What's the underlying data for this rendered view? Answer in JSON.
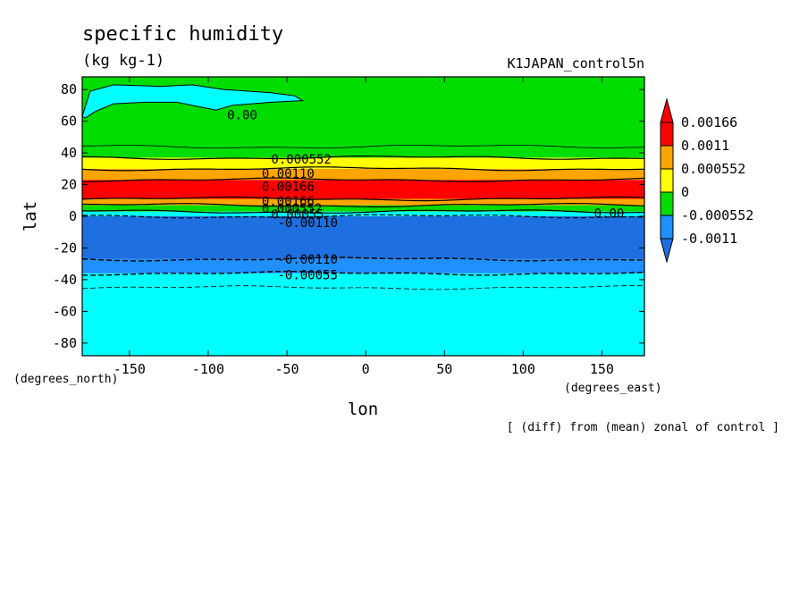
{
  "chart_data": {
    "type": "heatmap",
    "title": "specific humidity",
    "units": "(kg kg-1)",
    "experiment": "K1JAPAN_control5n",
    "xlabel": "lon",
    "ylabel": "lat",
    "x_unit_label": "(degrees_east)",
    "y_unit_label": "(degrees_north)",
    "note": "[ (diff) from (mean) zonal of control ]",
    "xlim": [
      -180,
      177
    ],
    "ylim": [
      -88,
      88
    ],
    "x_ticks": [
      -150,
      -100,
      -50,
      0,
      50,
      100,
      150
    ],
    "x_tick_labels": [
      "-150",
      "-100",
      "-50",
      "0",
      "50",
      "100",
      "150"
    ],
    "y_ticks": [
      -80,
      -60,
      -40,
      -20,
      0,
      20,
      40,
      60,
      80
    ],
    "y_tick_labels": [
      "-80",
      "-60",
      "-40",
      "-20",
      "0",
      "20",
      "40",
      "60",
      "80"
    ],
    "colorbar": {
      "levels": [
        -0.0011,
        -0.000552,
        0,
        0.000552,
        0.0011,
        0.00166
      ],
      "labels": [
        "-0.0011",
        "-0.000552",
        "0",
        "0.000552",
        "0.0011",
        "0.00166"
      ],
      "colors": [
        "#1e90ff",
        "#00ffff",
        "#00dd00",
        "#ffff00",
        "#ffa500",
        "#ff0000"
      ],
      "below_color": "#1e6fe0",
      "above_color": "#ff0000"
    },
    "bands": [
      {
        "y0": -88,
        "y1": -36,
        "color": "#00ffff"
      },
      {
        "y0": -36,
        "y1": -27,
        "color": "#1e90ff"
      },
      {
        "y0": -27,
        "y1": 0,
        "color": "#1e6fe0"
      },
      {
        "y0": 0,
        "y1": 3,
        "color": "#00ffff"
      },
      {
        "y0": 3,
        "y1": 7,
        "color": "#00dd00"
      },
      {
        "y0": 7,
        "y1": 11,
        "color": "#ffa500"
      },
      {
        "y0": 11,
        "y1": 23,
        "color": "#ff0000"
      },
      {
        "y0": 23,
        "y1": 30,
        "color": "#ffa500"
      },
      {
        "y0": 30,
        "y1": 37,
        "color": "#ffff00"
      },
      {
        "y0": 37,
        "y1": 88,
        "color": "#00dd00"
      }
    ],
    "cyan_patch": {
      "color": "#00ffff",
      "points": [
        [
          -180,
          63
        ],
        [
          -175,
          79
        ],
        [
          -160,
          83
        ],
        [
          -130,
          82
        ],
        [
          -110,
          83
        ],
        [
          -90,
          80
        ],
        [
          -60,
          78
        ],
        [
          -45,
          76
        ],
        [
          -40,
          73
        ],
        [
          -60,
          72
        ],
        [
          -85,
          70
        ],
        [
          -95,
          67
        ],
        [
          -105,
          69
        ],
        [
          -120,
          72
        ],
        [
          -140,
          72
        ],
        [
          -160,
          71
        ],
        [
          -172,
          66
        ],
        [
          -178,
          62
        ]
      ]
    },
    "contours": [
      {
        "lat": 44,
        "style": "solid",
        "width": 0.8
      },
      {
        "lat": 37,
        "style": "solid",
        "width": 1.2
      },
      {
        "lat": 30,
        "style": "solid",
        "width": 1.2
      },
      {
        "lat": 23,
        "style": "solid",
        "width": 1.2
      },
      {
        "lat": 11,
        "style": "solid",
        "width": 1.2
      },
      {
        "lat": 7,
        "style": "solid",
        "width": 1.2
      },
      {
        "lat": 3,
        "style": "solid",
        "width": 1.2
      },
      {
        "lat": 0,
        "style": "dashed",
        "width": 1.2
      },
      {
        "lat": -27,
        "style": "dashed",
        "width": 1.4
      },
      {
        "lat": -36,
        "style": "dashed",
        "width": 1.4
      },
      {
        "lat": -45,
        "style": "dashed",
        "width": 0.8
      }
    ],
    "contour_labels": [
      {
        "text": "0.00",
        "lon": -88,
        "lat": 64
      },
      {
        "text": "0.000552",
        "lon": -60,
        "lat": 36
      },
      {
        "text": "0.00110",
        "lon": -66,
        "lat": 27
      },
      {
        "text": "0.00166",
        "lon": -66,
        "lat": 19
      },
      {
        "text": "0.00166",
        "lon": -66,
        "lat": 9.5
      },
      {
        "text": "0.000552",
        "lon": -66,
        "lat": 5
      },
      {
        "text": "0.00055",
        "lon": -60,
        "lat": 1.5
      },
      {
        "text": "-0.00110",
        "lon": -56,
        "lat": -4
      },
      {
        "text": "0.00",
        "lon": 145,
        "lat": 2
      },
      {
        "text": "-0.00110",
        "lon": -56,
        "lat": -27
      },
      {
        "text": "-0.00055",
        "lon": -56,
        "lat": -37
      }
    ]
  }
}
